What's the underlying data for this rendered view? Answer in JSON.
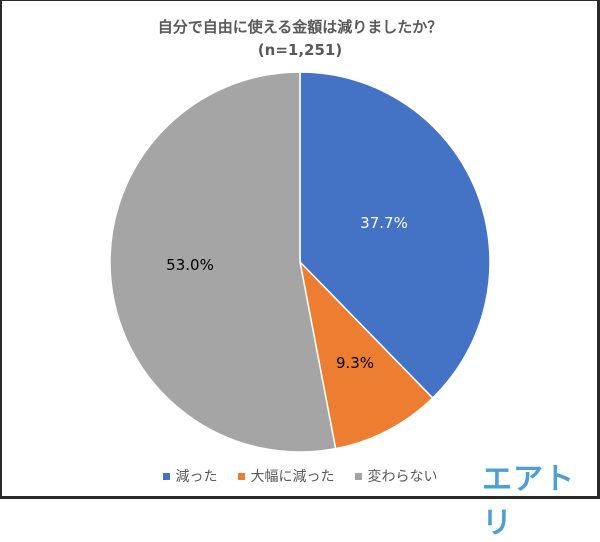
{
  "chart_data": {
    "type": "pie",
    "title": "自分で自由に使える金額は減りましたか？",
    "subtitle": "(n=1,251)",
    "categories": [
      "減った",
      "大幅に減った",
      "変わらない"
    ],
    "values": [
      37.7,
      9.3,
      53.0
    ],
    "labels": [
      "37.7%",
      "9.3%",
      "53.0%"
    ],
    "colors": [
      "#4472c4",
      "#ed7d31",
      "#a5a5a5"
    ],
    "label_colors": [
      "#ffffff",
      "#000000",
      "#000000"
    ],
    "start_angle": "12 o'clock, clockwise",
    "legend_position": "bottom"
  },
  "header": {
    "title": "自分で自由に使える金額は減りましたか？",
    "sample": "(n=1,251)"
  },
  "legend": {
    "items": [
      {
        "label": "減った",
        "color": "#4472c4"
      },
      {
        "label": "大幅に減った",
        "color": "#ed7d31"
      },
      {
        "label": "変わらない",
        "color": "#a5a5a5"
      }
    ]
  },
  "brand": {
    "logo_text": "エアトリ",
    "color": "#4d9fd6"
  }
}
